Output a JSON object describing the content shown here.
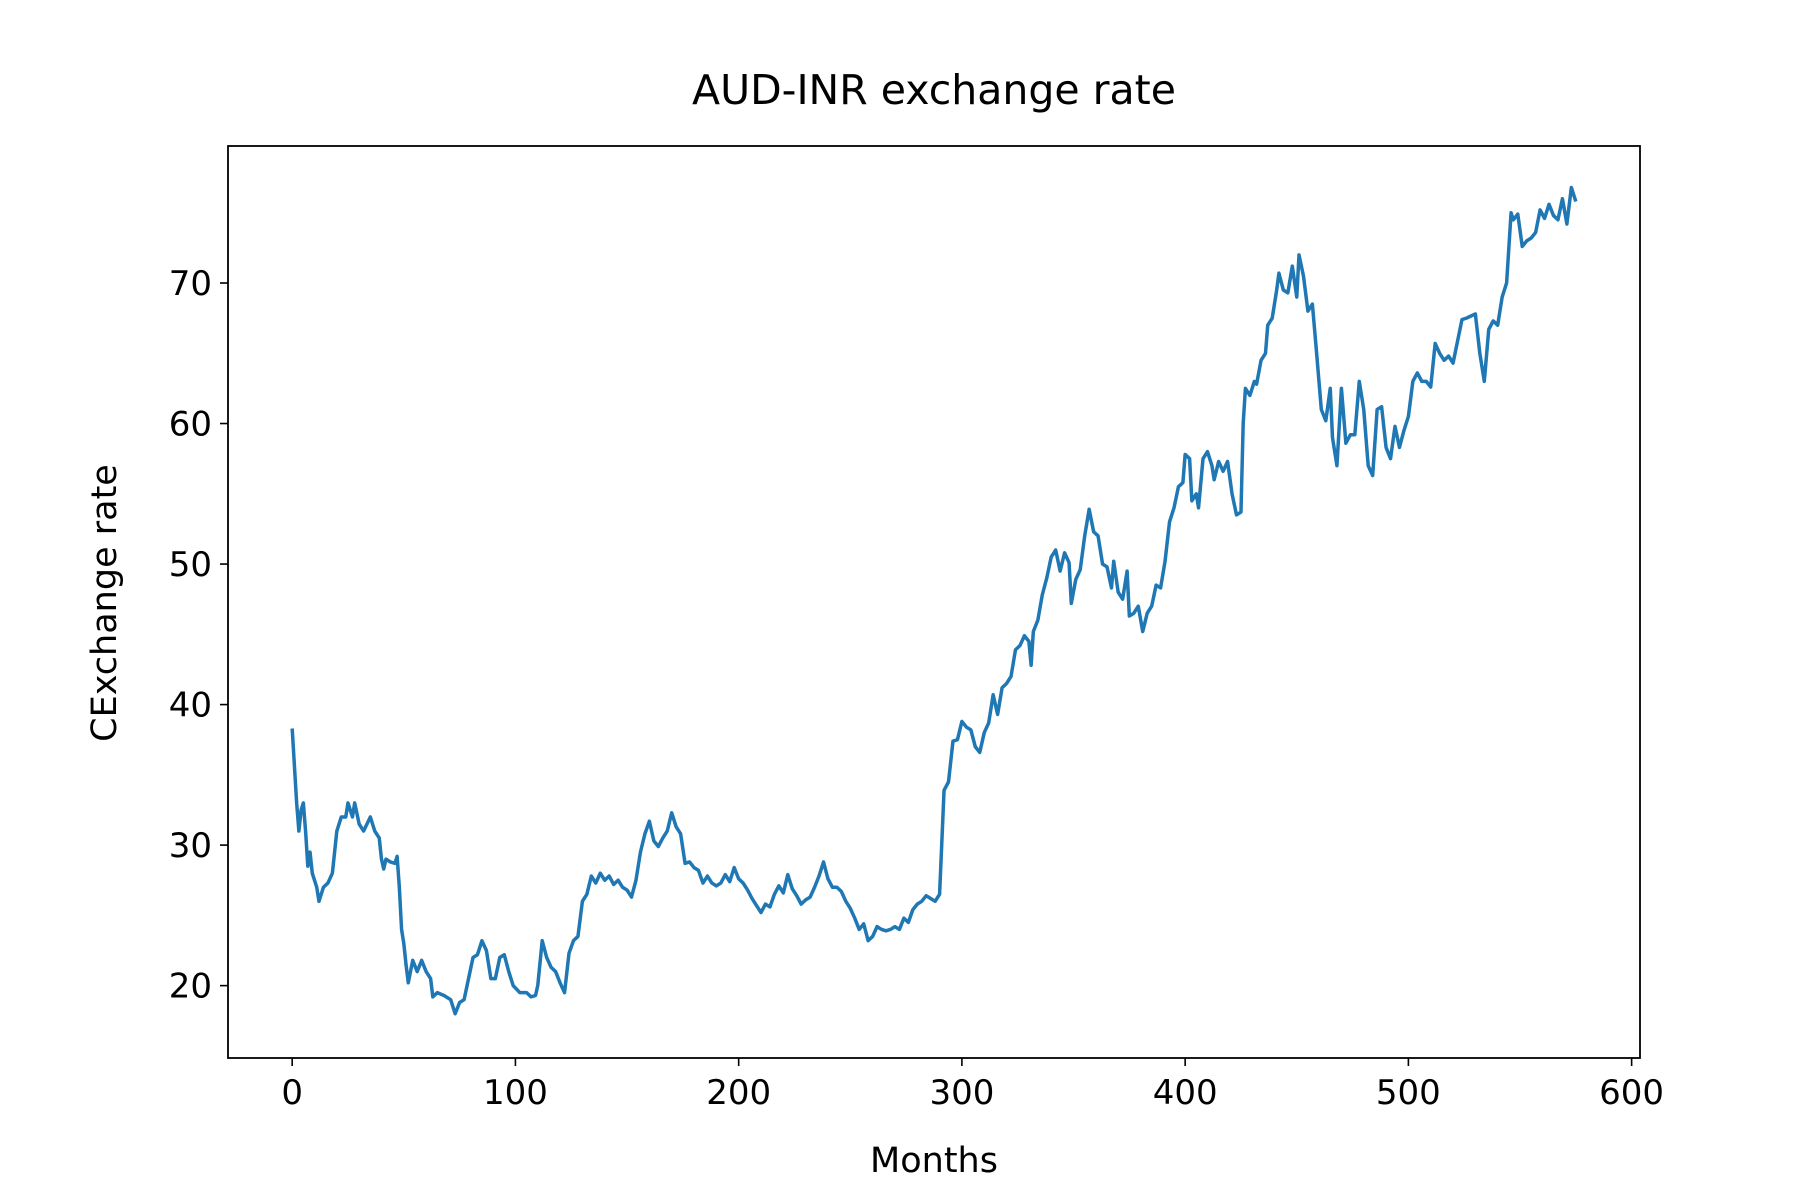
{
  "chart_data": {
    "type": "line",
    "title": "AUD-INR exchange rate",
    "x_label": "Months",
    "y_label": "CExchange rate",
    "color": "#1f77b4",
    "x": [
      0,
      2,
      3,
      4,
      5,
      6,
      7,
      8,
      9,
      11,
      12,
      14,
      16,
      18,
      20,
      22,
      24,
      25,
      27,
      28,
      30,
      32,
      35,
      37,
      39,
      40,
      41,
      42,
      44,
      46,
      47,
      48,
      49,
      50,
      51,
      52,
      54,
      56,
      58,
      60,
      62,
      63,
      65,
      68,
      71,
      73,
      75,
      77,
      79,
      81,
      83,
      85,
      87,
      89,
      91,
      93,
      95,
      97,
      99,
      102,
      105,
      107,
      109,
      110,
      112,
      114,
      116,
      118,
      120,
      122,
      124,
      126,
      128,
      130,
      132,
      134,
      136,
      138,
      140,
      142,
      144,
      146,
      148,
      150,
      152,
      154,
      156,
      158,
      160,
      162,
      164,
      166,
      168,
      170,
      172,
      174,
      176,
      178,
      180,
      182,
      184,
      186,
      188,
      190,
      192,
      194,
      196,
      198,
      200,
      202,
      204,
      206,
      208,
      210,
      212,
      214,
      216,
      218,
      220,
      222,
      224,
      226,
      228,
      230,
      232,
      234,
      236,
      238,
      240,
      242,
      244,
      246,
      248,
      250,
      252,
      254,
      256,
      258,
      260,
      262,
      264,
      266,
      268,
      270,
      272,
      274,
      276,
      278,
      280,
      282,
      284,
      286,
      288,
      290,
      292,
      294,
      296,
      298,
      300,
      302,
      304,
      306,
      308,
      310,
      312,
      314,
      316,
      318,
      320,
      322,
      324,
      326,
      328,
      330,
      331,
      332,
      334,
      336,
      338,
      340,
      342,
      344,
      346,
      348,
      349,
      351,
      353,
      355,
      357,
      359,
      361,
      363,
      365,
      367,
      368,
      370,
      372,
      374,
      375,
      377,
      379,
      381,
      383,
      385,
      387,
      389,
      391,
      393,
      395,
      397,
      399,
      400,
      402,
      403,
      405,
      406,
      408,
      410,
      412,
      413,
      415,
      417,
      419,
      421,
      423,
      425,
      426,
      427,
      429,
      431,
      432,
      434,
      436,
      437,
      439,
      441,
      442,
      444,
      446,
      448,
      450,
      451,
      453,
      455,
      457,
      459,
      461,
      463,
      465,
      466,
      468,
      470,
      472,
      474,
      476,
      478,
      480,
      482,
      484,
      486,
      488,
      490,
      492,
      494,
      496,
      498,
      500,
      502,
      504,
      506,
      508,
      510,
      512,
      514,
      516,
      518,
      520,
      524,
      526,
      530,
      532,
      534,
      536,
      538,
      540,
      542,
      544,
      546,
      547,
      549,
      551,
      553,
      555,
      557,
      559,
      561,
      563,
      565,
      567,
      569,
      571,
      573,
      575
    ],
    "values": [
      38.3,
      33,
      31,
      32.5,
      33,
      31,
      28.5,
      29.5,
      28,
      27,
      26,
      27,
      27.3,
      28,
      31,
      32,
      32,
      33,
      32,
      33,
      31.5,
      31,
      32,
      31,
      30.5,
      29,
      28.3,
      29,
      28.8,
      28.7,
      29.2,
      27,
      24,
      23,
      21.5,
      20.2,
      21.8,
      21,
      21.8,
      21,
      20.5,
      19.2,
      19.5,
      19.3,
      19,
      18,
      18.8,
      19,
      20.5,
      22,
      22.2,
      23.2,
      22.5,
      20.5,
      20.5,
      22,
      22.2,
      21,
      20,
      19.5,
      19.5,
      19.2,
      19.3,
      20,
      23.2,
      22,
      21.3,
      21,
      20.2,
      19.5,
      22.3,
      23.2,
      23.5,
      26,
      26.5,
      27.8,
      27.3,
      28,
      27.5,
      27.8,
      27.2,
      27.5,
      27,
      26.8,
      26.3,
      27.5,
      29.5,
      30.8,
      31.7,
      30.3,
      29.9,
      30.5,
      31,
      32.3,
      31.3,
      30.8,
      28.7,
      28.8,
      28.4,
      28.2,
      27.3,
      27.8,
      27.3,
      27.1,
      27.3,
      27.9,
      27.4,
      28.4,
      27.6,
      27.3,
      26.8,
      26.2,
      25.7,
      25.2,
      25.8,
      25.6,
      26.5,
      27.1,
      26.6,
      27.9,
      26.9,
      26.4,
      25.8,
      26.1,
      26.3,
      27,
      27.8,
      28.8,
      27.6,
      27,
      27,
      26.7,
      26,
      25.5,
      24.8,
      24,
      24.4,
      23.2,
      23.5,
      24.2,
      24,
      23.9,
      24,
      24.2,
      24,
      24.8,
      24.5,
      25.4,
      25.8,
      26,
      26.4,
      26.2,
      26,
      26.5,
      33.9,
      34.5,
      37.4,
      37.5,
      38.8,
      38.4,
      38.2,
      37,
      36.6,
      38,
      38.7,
      40.7,
      39.3,
      41.2,
      41.5,
      42,
      43.9,
      44.2,
      44.9,
      44.5,
      42.8,
      45.2,
      46,
      47.8,
      49,
      50.5,
      51,
      49.5,
      50.8,
      50.1,
      47.2,
      48.9,
      49.6,
      52,
      53.9,
      52.3,
      52,
      50,
      49.8,
      48.3,
      50.2,
      48,
      47.5,
      49.5,
      46.3,
      46.5,
      47,
      45.2,
      46.5,
      47,
      48.5,
      48.3,
      50.2,
      53,
      54,
      55.5,
      55.8,
      57.8,
      57.5,
      54.5,
      55,
      54,
      57.5,
      58,
      57,
      56,
      57.3,
      56.6,
      57.3,
      55,
      53.5,
      53.7,
      60,
      62.5,
      62,
      63,
      62.8,
      64.5,
      65,
      67,
      67.5,
      69.5,
      70.7,
      69.5,
      69.3,
      71.2,
      69,
      72,
      70.5,
      68,
      68.5,
      64.8,
      61,
      60.2,
      62.5,
      59,
      57,
      62.5,
      58.6,
      59.2,
      59.2,
      63,
      61,
      57,
      56.3,
      61,
      61.2,
      58.3,
      57.5,
      59.8,
      58.3,
      59.5,
      60.5,
      63,
      63.6,
      63,
      63,
      62.6,
      65.7,
      65,
      64.5,
      64.8,
      64.3,
      67.4,
      67.5,
      67.8,
      65,
      63,
      66.7,
      67.3,
      67,
      69,
      70,
      75,
      74.5,
      74.9,
      72.6,
      73,
      73.2,
      73.6,
      75.2,
      74.6,
      75.6,
      74.8,
      74.5,
      76,
      74.2,
      76.8,
      75.8
    ],
    "xlim": [
      -28.75,
      603.75
    ],
    "xticks": [
      0,
      100,
      200,
      300,
      400,
      500,
      600
    ],
    "ylim": [
      14.85,
      79.75
    ],
    "yticks": [
      20,
      30,
      40,
      50,
      60,
      70
    ]
  }
}
